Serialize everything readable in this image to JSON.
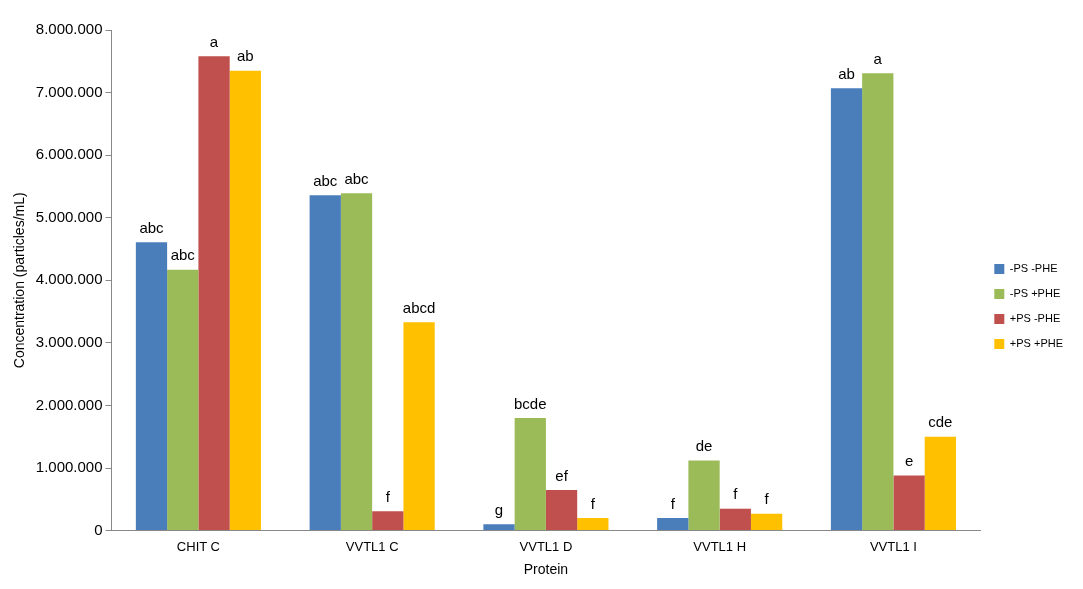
{
  "chart_data": {
    "type": "bar",
    "xlabel": "Protein",
    "ylabel": "Concentration (particles/mL)",
    "categories": [
      "CHIT C",
      "VVTL1 C",
      "VVTL1 D",
      "VVTL1 H",
      "VVTL1 I"
    ],
    "ylim": [
      0,
      8000000
    ],
    "yticks": [
      {
        "value": 0,
        "label": "0"
      },
      {
        "value": 1000000,
        "label": "1.000.000"
      },
      {
        "value": 2000000,
        "label": "2.000.000"
      },
      {
        "value": 3000000,
        "label": "3.000.000"
      },
      {
        "value": 4000000,
        "label": "4.000.000"
      },
      {
        "value": 5000000,
        "label": "5.000.000"
      },
      {
        "value": 6000000,
        "label": "6.000.000"
      },
      {
        "value": 7000000,
        "label": "7.000.000"
      },
      {
        "value": 8000000,
        "label": "8.000.000"
      }
    ],
    "grid": false,
    "legend": "right",
    "series": [
      {
        "name": "-PS -PHE",
        "color": "#4a7ebb",
        "values": [
          4610000,
          5360000,
          100000,
          200000,
          7070000
        ],
        "value_labels": [
          "abc",
          "abc",
          "g",
          "f",
          "ab"
        ]
      },
      {
        "name": "-PS +PHE",
        "color": "#9bbb59",
        "values": [
          4170000,
          5390000,
          1800000,
          1120000,
          7310000
        ],
        "value_labels": [
          "abc",
          "abc",
          "bcde",
          "de",
          "a"
        ]
      },
      {
        "name": "+PS -PHE",
        "color": "#c0504d",
        "values": [
          7580000,
          310000,
          650000,
          350000,
          880000
        ],
        "value_labels": [
          "a",
          "f",
          "ef",
          "f",
          "e"
        ]
      },
      {
        "name": "+PS +PHE",
        "color": "#ffc000",
        "values": [
          7350000,
          3330000,
          200000,
          270000,
          1500000
        ],
        "value_labels": [
          "ab",
          "abcd",
          "f",
          "f",
          "cde"
        ]
      }
    ]
  }
}
